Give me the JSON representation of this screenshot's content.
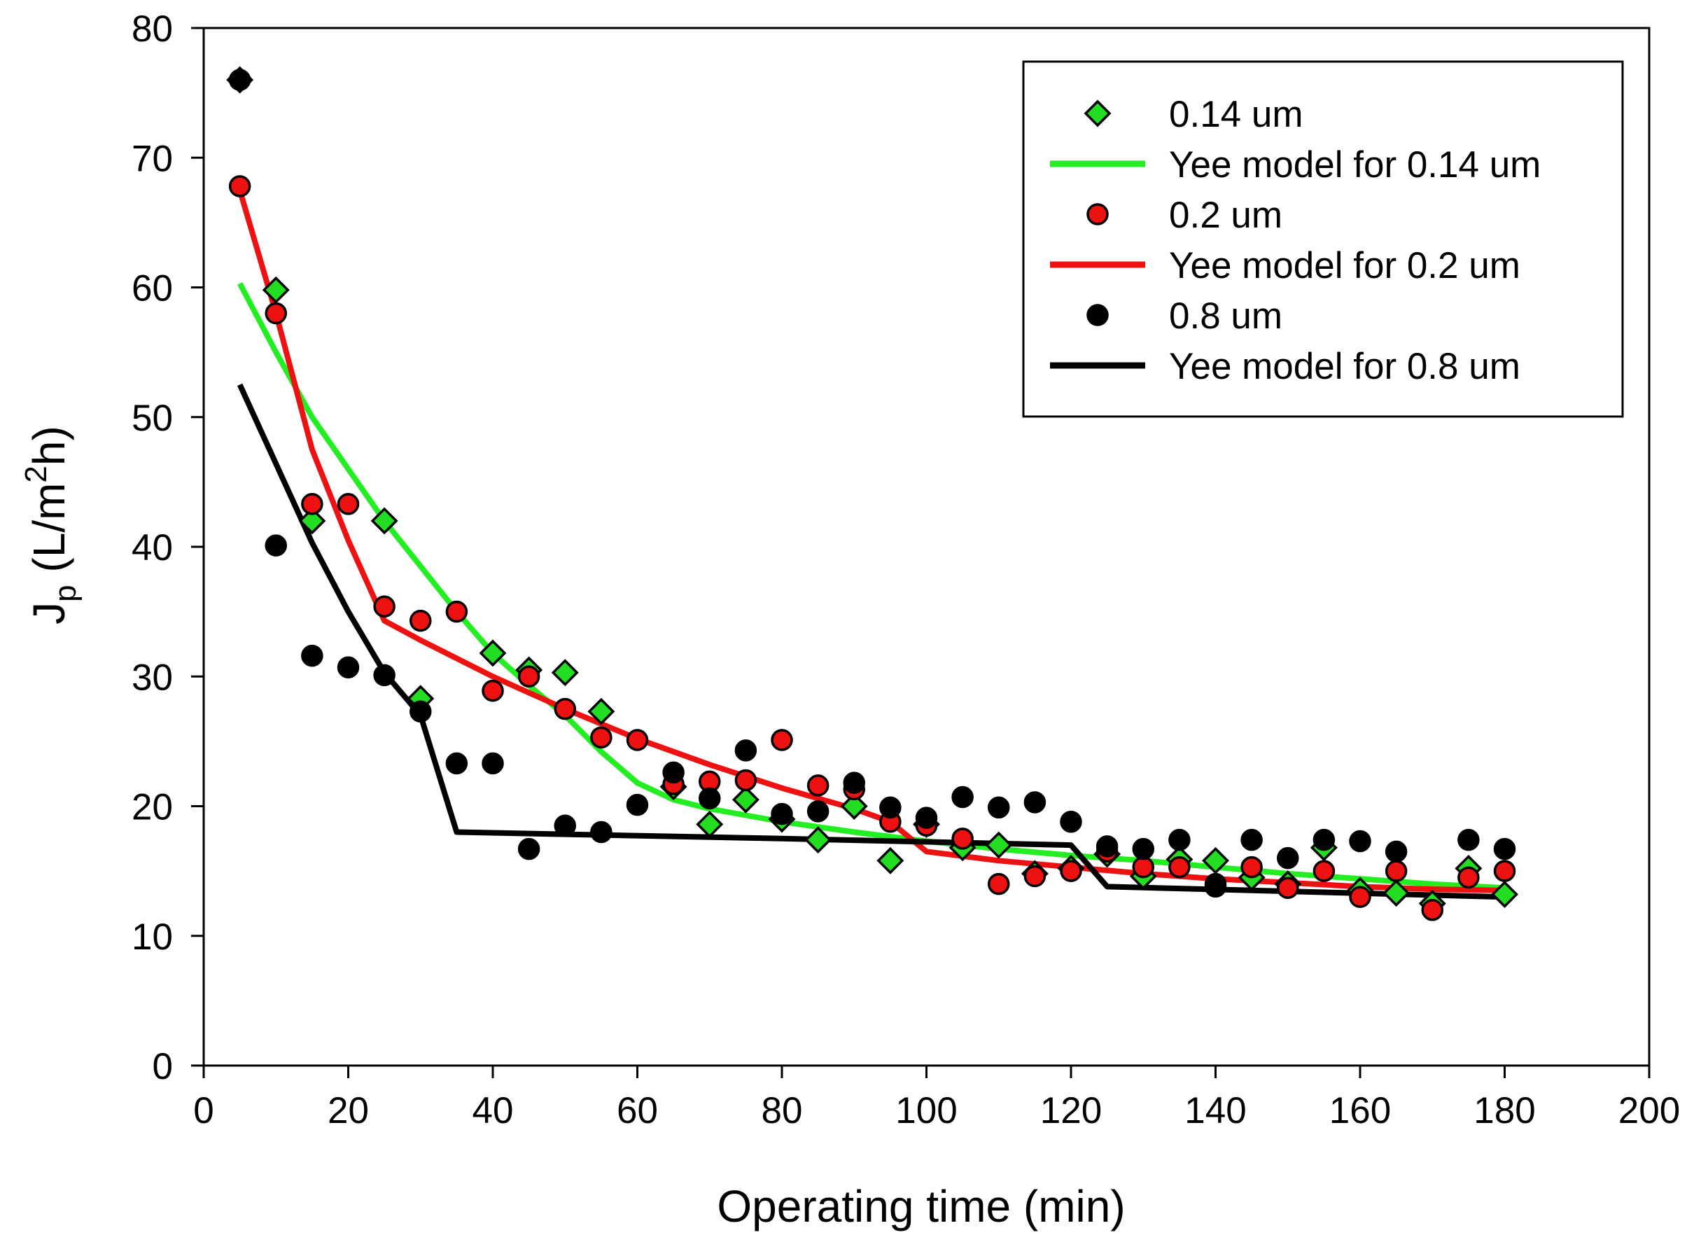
{
  "chart_data": {
    "type": "scatter",
    "title": "",
    "xlabel": "Operating time (min)",
    "ylabel_main": "J",
    "ylabel_sub": "p",
    "ylabel_unit_pre": " (L/m",
    "ylabel_unit_sup": "2",
    "ylabel_unit_post": "h)",
    "xlim": [
      0,
      200
    ],
    "ylim": [
      0,
      80
    ],
    "xticks": [
      0,
      20,
      40,
      60,
      80,
      100,
      120,
      140,
      160,
      180,
      200
    ],
    "yticks": [
      0,
      10,
      20,
      30,
      40,
      50,
      60,
      70,
      80
    ],
    "grid": false,
    "legend_position": "top-right",
    "series": [
      {
        "name": "0.14 um",
        "kind": "points",
        "marker": "diamond",
        "color": "#22dd22",
        "x": [
          5,
          10,
          15,
          25,
          30,
          40,
          45,
          50,
          55,
          65,
          70,
          75,
          80,
          85,
          90,
          95,
          100,
          105,
          110,
          115,
          120,
          125,
          130,
          135,
          140,
          145,
          150,
          155,
          160,
          165,
          170,
          175,
          180
        ],
        "y": [
          76,
          59.8,
          42,
          42,
          28.3,
          31.8,
          30.5,
          30.3,
          27.3,
          21.5,
          18.6,
          20.5,
          19,
          17.4,
          20,
          15.8,
          18.6,
          16.8,
          17,
          14.8,
          15.2,
          16.3,
          14.6,
          15.9,
          15.8,
          14.5,
          14,
          16.8,
          13.5,
          13.3,
          12.5,
          15.2,
          13.2
        ]
      },
      {
        "name": "Yee model for 0.14 um",
        "kind": "line",
        "color": "#22ee22",
        "x": [
          5,
          10,
          15,
          20,
          25,
          30,
          35,
          40,
          45,
          50,
          55,
          60,
          65,
          70,
          75,
          80,
          90,
          100,
          110,
          120,
          130,
          140,
          150,
          160,
          170,
          180
        ],
        "y": [
          60.3,
          55,
          50,
          46,
          42,
          38.5,
          35,
          31.8,
          29.3,
          27,
          24.2,
          21.8,
          20.5,
          19.8,
          19.3,
          18.8,
          18,
          17.3,
          16.7,
          16.2,
          15.8,
          15.3,
          14.8,
          14.4,
          14,
          13.7
        ]
      },
      {
        "name": "0.2 um",
        "kind": "points",
        "marker": "circle",
        "color": "#ee1111",
        "x": [
          5,
          10,
          15,
          20,
          25,
          30,
          35,
          40,
          45,
          50,
          55,
          60,
          65,
          70,
          75,
          80,
          85,
          90,
          95,
          100,
          105,
          110,
          115,
          120,
          125,
          130,
          135,
          140,
          145,
          150,
          155,
          160,
          165,
          170,
          175,
          180
        ],
        "y": [
          67.8,
          58,
          43.3,
          43.3,
          35.4,
          34.3,
          35,
          28.9,
          30,
          27.5,
          25.3,
          25.1,
          21.7,
          21.9,
          22,
          25.1,
          21.6,
          21.3,
          18.8,
          18.5,
          17.5,
          14,
          14.6,
          15,
          16.5,
          15.3,
          15.3,
          14,
          15.3,
          13.7,
          15,
          13,
          15,
          12,
          14.5,
          15
        ]
      },
      {
        "name": "Yee model for 0.2 um",
        "kind": "line",
        "color": "#ee1111",
        "x": [
          5,
          10,
          15,
          20,
          25,
          30,
          40,
          50,
          60,
          70,
          80,
          90,
          95,
          100,
          110,
          120,
          130,
          140,
          150,
          160,
          170,
          180
        ],
        "y": [
          67.5,
          58,
          47.5,
          40.5,
          34.3,
          32.8,
          30,
          27.5,
          25.2,
          23.2,
          21.4,
          19.8,
          18.8,
          16.5,
          15.8,
          15.3,
          14.8,
          14.4,
          14.1,
          13.8,
          13.6,
          13.5
        ]
      },
      {
        "name": "0.8 um",
        "kind": "points",
        "marker": "circle",
        "color": "#000000",
        "x": [
          5,
          10,
          15,
          20,
          25,
          30,
          35,
          40,
          45,
          50,
          55,
          60,
          65,
          70,
          75,
          80,
          85,
          90,
          95,
          100,
          105,
          110,
          115,
          120,
          125,
          130,
          135,
          140,
          145,
          150,
          155,
          160,
          165,
          175,
          180
        ],
        "y": [
          76,
          40.1,
          31.6,
          30.7,
          30.1,
          27.3,
          23.3,
          23.3,
          16.7,
          18.5,
          18,
          20.1,
          22.6,
          20.6,
          24.3,
          19.4,
          19.6,
          21.8,
          19.9,
          19.1,
          20.7,
          19.9,
          20.3,
          18.8,
          16.9,
          16.7,
          17.4,
          13.8,
          17.4,
          16,
          17.4,
          17.3,
          16.5,
          17.4,
          16.7
        ]
      },
      {
        "name": "Yee model for 0.8 um",
        "kind": "line",
        "color": "#000000",
        "x": [
          5,
          15,
          20,
          25,
          30,
          35,
          80,
          120,
          125,
          180
        ],
        "y": [
          52.5,
          40.3,
          35,
          30.3,
          27,
          18,
          17.5,
          17,
          13.8,
          13
        ]
      }
    ]
  }
}
